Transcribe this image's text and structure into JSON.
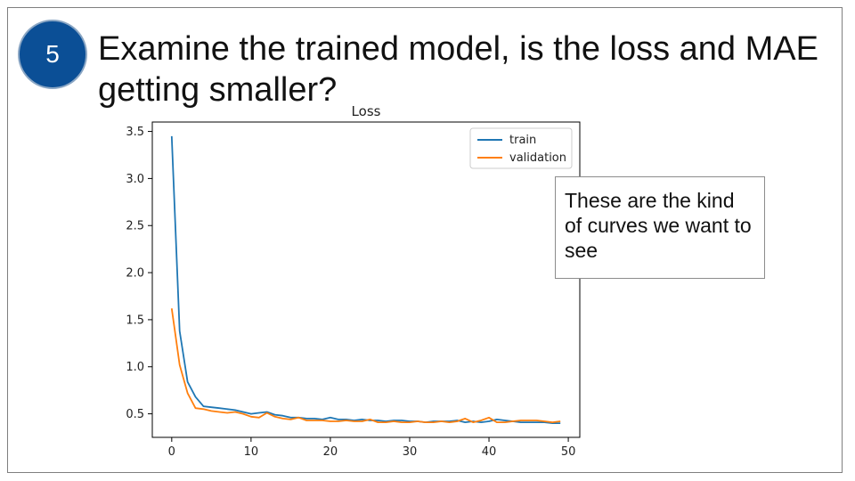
{
  "slide": {
    "step_number": "5",
    "title": "Examine the trained model, is the loss and MAE getting smaller?",
    "callout_text": "These are the kind of curves we want to see"
  },
  "colors": {
    "badge": "#0b4f96",
    "train": "#1f77b4",
    "validation": "#ff7f0e"
  },
  "chart_data": {
    "type": "line",
    "title": "Loss",
    "xlabel": "",
    "ylabel": "",
    "xlim": [
      -2.45,
      51.45
    ],
    "ylim": [
      0.25,
      3.6
    ],
    "xticks": [
      0,
      10,
      20,
      30,
      40,
      50
    ],
    "yticks": [
      0.5,
      1.0,
      1.5,
      2.0,
      2.5,
      3.0,
      3.5
    ],
    "grid": false,
    "legend_position": "top-right",
    "x": [
      0,
      1,
      2,
      3,
      4,
      5,
      6,
      7,
      8,
      9,
      10,
      11,
      12,
      13,
      14,
      15,
      16,
      17,
      18,
      19,
      20,
      21,
      22,
      23,
      24,
      25,
      26,
      27,
      28,
      29,
      30,
      31,
      32,
      33,
      34,
      35,
      36,
      37,
      38,
      39,
      40,
      41,
      42,
      43,
      44,
      45,
      46,
      47,
      48,
      49
    ],
    "series": [
      {
        "name": "train",
        "values": [
          3.45,
          1.38,
          0.84,
          0.68,
          0.58,
          0.57,
          0.56,
          0.55,
          0.54,
          0.52,
          0.5,
          0.51,
          0.52,
          0.49,
          0.48,
          0.46,
          0.46,
          0.45,
          0.45,
          0.44,
          0.46,
          0.44,
          0.44,
          0.43,
          0.44,
          0.43,
          0.43,
          0.42,
          0.43,
          0.43,
          0.42,
          0.42,
          0.41,
          0.42,
          0.42,
          0.42,
          0.43,
          0.41,
          0.42,
          0.41,
          0.42,
          0.44,
          0.43,
          0.42,
          0.41,
          0.41,
          0.41,
          0.41,
          0.4,
          0.4
        ]
      },
      {
        "name": "validation",
        "values": [
          1.62,
          1.02,
          0.72,
          0.56,
          0.55,
          0.53,
          0.52,
          0.51,
          0.52,
          0.5,
          0.47,
          0.46,
          0.51,
          0.47,
          0.45,
          0.44,
          0.46,
          0.43,
          0.43,
          0.43,
          0.42,
          0.42,
          0.43,
          0.42,
          0.42,
          0.44,
          0.41,
          0.41,
          0.42,
          0.41,
          0.41,
          0.42,
          0.41,
          0.41,
          0.42,
          0.41,
          0.42,
          0.45,
          0.41,
          0.43,
          0.46,
          0.41,
          0.41,
          0.42,
          0.43,
          0.43,
          0.43,
          0.42,
          0.41,
          0.42
        ]
      }
    ]
  }
}
